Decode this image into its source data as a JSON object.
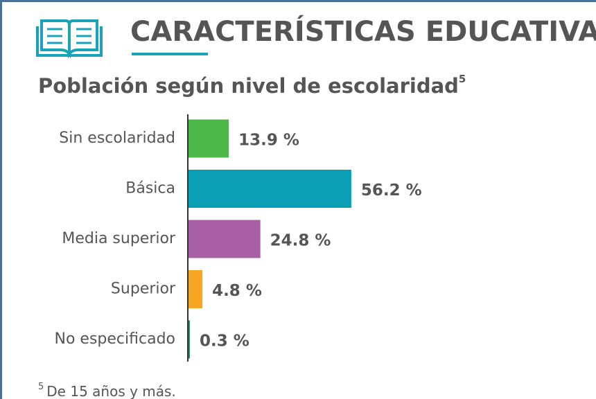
{
  "chart_data": {
    "type": "bar",
    "orientation": "horizontal",
    "title": "CARACTERÍSTICAS EDUCATIVAS",
    "subtitle": "Población según nivel de escolaridad",
    "subtitle_marker": "5",
    "footnote": {
      "marker": "5",
      "text": "De 15 años y más."
    },
    "categories": [
      "Sin escolaridad",
      "Básica",
      "Media superior",
      "Superior",
      "No especificado"
    ],
    "values": [
      13.9,
      56.2,
      24.8,
      4.8,
      0.3
    ],
    "value_labels": [
      "13.9 %",
      "56.2 %",
      "24.8 %",
      "4.8 %",
      "0.3 %"
    ],
    "colors": [
      "#4cb848",
      "#0a9fb4",
      "#a85fa3",
      "#f6a623",
      "#1b8a5c"
    ]
  }
}
